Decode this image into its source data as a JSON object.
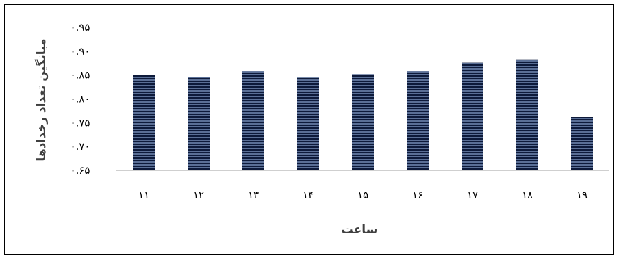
{
  "chart_data": {
    "type": "bar",
    "categories": [
      "۱۱",
      "۱۲",
      "۱۳",
      "۱۴",
      "۱۵",
      "۱۶",
      "۱۷",
      "۱۸",
      "۱۹"
    ],
    "values": [
      0.85,
      0.846,
      0.858,
      0.845,
      0.852,
      0.858,
      0.876,
      0.883,
      0.762
    ],
    "ylim": [
      0.65,
      0.95
    ],
    "yticks": [
      0.65,
      0.7,
      0.75,
      0.8,
      0.85,
      0.9,
      0.95
    ],
    "ytick_labels": [
      "۰.۶۵",
      "۰.۷۰",
      "۰.۷۵",
      "۰.۸۰",
      "۰.۸۵",
      "۰.۹۰",
      "۰.۹۵"
    ],
    "xlabel": "ساعت",
    "ylabel": "میانگین تعداد رخدادها",
    "title": "",
    "grid": false,
    "legend": "none",
    "bar_color": "#5a6f96",
    "bar_stripe_color": "#0d1a3a",
    "axis_color": "#bfbfbf"
  }
}
